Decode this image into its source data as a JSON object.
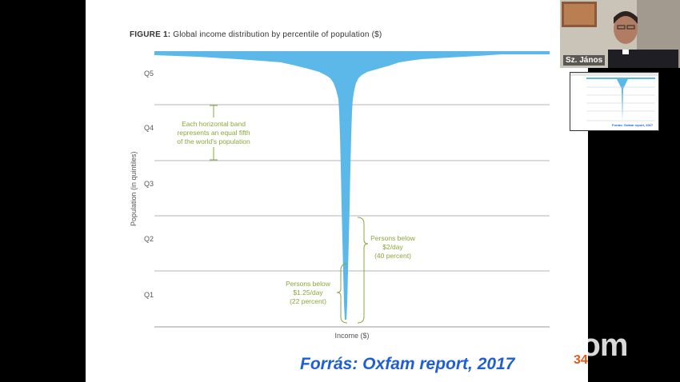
{
  "slide": {
    "figure_label": "FIGURE 1:",
    "figure_title": "Global income distribution by percentile of population ($)",
    "source": "Forrás: Oxfam report, 2017",
    "slide_number": "34"
  },
  "chart_data": {
    "type": "area",
    "title": "Global income distribution by percentile of population ($)",
    "xlabel": "Income ($)",
    "ylabel": "Population (in quintiles)",
    "y_categories": [
      "Q5",
      "Q4",
      "Q3",
      "Q2",
      "Q1"
    ],
    "annotations": [
      {
        "name": "band",
        "text": [
          "Each horizontal band",
          "represents an equal fifth",
          "of the world's population"
        ]
      },
      {
        "name": "below-2",
        "text": [
          "Persons below",
          "$2/day",
          "(40 percent)"
        ]
      },
      {
        "name": "below-125",
        "text": [
          "Persons below",
          "$1.25/day",
          "(22 percent)"
        ]
      }
    ],
    "colors": {
      "shape": "#5bb8e8",
      "annotation": "#8aa63c",
      "grid": "#b5b5b5"
    }
  },
  "participants": {
    "speaker_name": "Sz. János",
    "thumbnail_caption": "Forrás: Oxfam report, 2017"
  },
  "watermark": {
    "logo": "zoom"
  }
}
